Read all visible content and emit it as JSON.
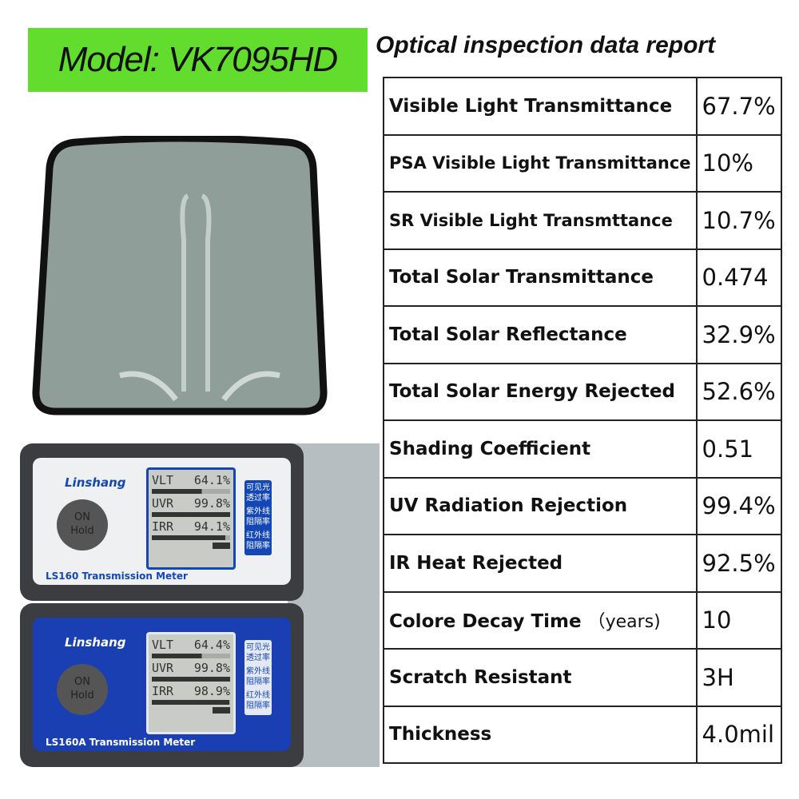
{
  "model_label": "Model: VK7095HD",
  "report_title": "Optical inspection data report",
  "rows": [
    {
      "label": "Visible Light Transmittance",
      "value": "67.7%"
    },
    {
      "label": "PSA Visible Light Transmittance",
      "value": "10%"
    },
    {
      "label": "SR Visible Light Transmttance",
      "value": "10.7%"
    },
    {
      "label": "Total Solar Transmittance",
      "value": "0.474"
    },
    {
      "label": "Total Solar Reflectance",
      "value": "32.9%"
    },
    {
      "label": "Total Solar Energy Rejected",
      "value": "52.6%"
    },
    {
      "label": "Shading Coefficient",
      "value": "0.51"
    },
    {
      "label": "UV Radiation Rejection",
      "value": "99.4%"
    },
    {
      "label": "IR Heat Rejected",
      "value": "92.5%"
    },
    {
      "label": "Colore Decay Time",
      "unit": "（years)",
      "value": "10"
    },
    {
      "label": "Scratch Resistant",
      "value": "3H"
    },
    {
      "label": "Thickness",
      "value": "4.0mil"
    }
  ],
  "meters": [
    {
      "brand": "Linshang",
      "name": "LS160 Transmission Meter",
      "button": [
        "ON",
        "Hold"
      ],
      "readings": [
        {
          "k": "VLT",
          "v": "64.1%",
          "tag": "可见光透过率",
          "fill": 0.64
        },
        {
          "k": "UVR",
          "v": "99.8%",
          "tag": "紫外线阻隔率",
          "fill": 0.998
        },
        {
          "k": "IRR",
          "v": "94.1%",
          "tag": "红外线阻隔率",
          "fill": 0.94
        }
      ]
    },
    {
      "brand": "Linshang",
      "name": "LS160A Transmission Meter",
      "button": [
        "ON",
        "Hold"
      ],
      "readings": [
        {
          "k": "VLT",
          "v": "64.4%",
          "tag": "可见光透过率",
          "fill": 0.64
        },
        {
          "k": "UVR",
          "v": "99.8%",
          "tag": "紫外线阻隔率",
          "fill": 0.998
        },
        {
          "k": "IRR",
          "v": "98.9%",
          "tag": "红外线阻隔率",
          "fill": 0.99
        }
      ]
    }
  ]
}
